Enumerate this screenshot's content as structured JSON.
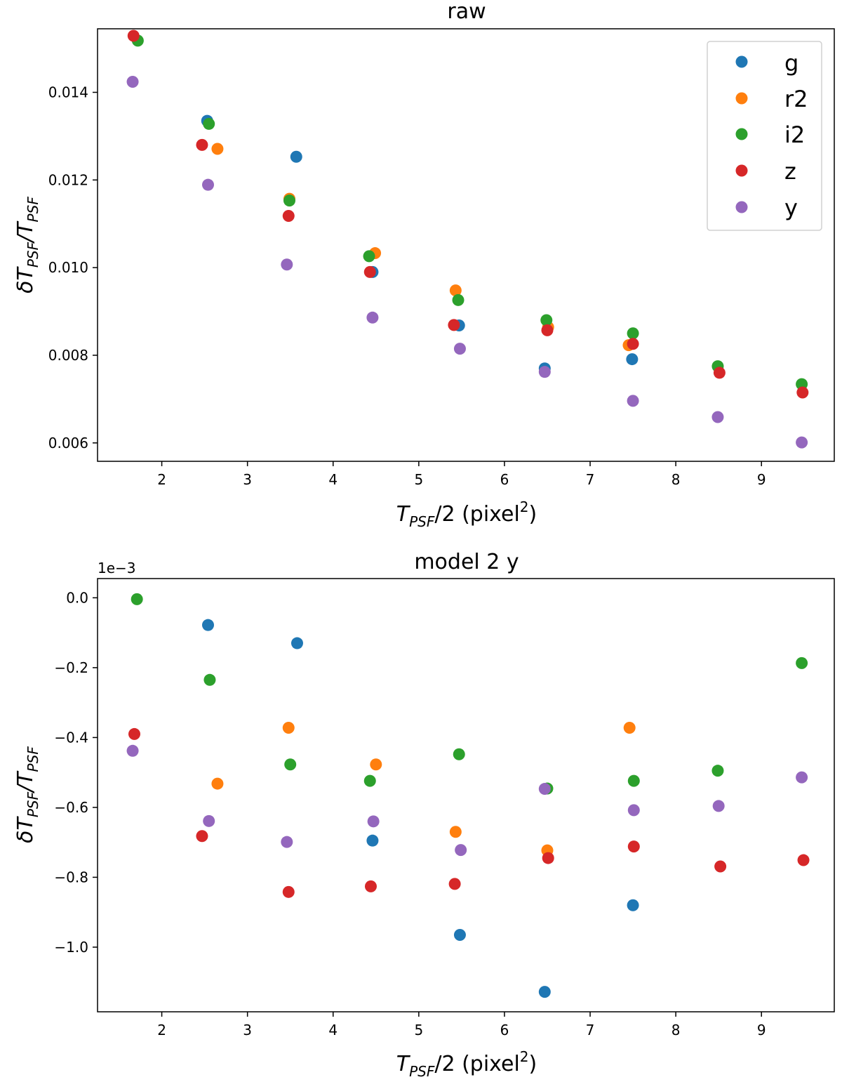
{
  "colors": {
    "g": "#1f77b4",
    "r2": "#ff7f0e",
    "i2": "#2ca02c",
    "z": "#d62728",
    "y": "#9467bd"
  },
  "chart_data": [
    {
      "type": "scatter",
      "title": "raw",
      "xlabel": {
        "t": "T",
        "sub1": "PSF",
        "mid": "/2 (pixel",
        "sup": "2",
        "end": ")"
      },
      "ylabel": {
        "d": "δT",
        "sub1": "PSF",
        "mid": "/T",
        "sub2": "PSF"
      },
      "xlim": [
        1.25,
        9.85
      ],
      "ylim": [
        0.00558,
        0.01545
      ],
      "xticks": [
        2,
        3,
        4,
        5,
        6,
        7,
        8,
        9
      ],
      "yticks": [
        0.006,
        0.008,
        0.01,
        0.012,
        0.014
      ],
      "ytick_labels": [
        "0.006",
        "0.008",
        "0.010",
        "0.012",
        "0.014"
      ],
      "legend": {
        "position": "top-right"
      },
      "series": [
        {
          "name": "g",
          "x": [
            2.53,
            3.57,
            4.46,
            5.47,
            6.47,
            7.49
          ],
          "y": [
            0.01335,
            0.01253,
            0.0099,
            0.00868,
            0.0077,
            0.00791
          ]
        },
        {
          "name": "r2",
          "x": [
            2.65,
            3.49,
            4.49,
            5.43,
            6.51,
            7.45
          ],
          "y": [
            0.01271,
            0.01157,
            0.01033,
            0.00948,
            0.00864,
            0.00823
          ]
        },
        {
          "name": "i2",
          "x": [
            1.72,
            2.55,
            3.49,
            4.42,
            5.46,
            6.49,
            7.5,
            8.49,
            9.47
          ],
          "y": [
            0.01518,
            0.01328,
            0.01153,
            0.01026,
            0.00926,
            0.0088,
            0.0085,
            0.00775,
            0.00734
          ]
        },
        {
          "name": "z",
          "x": [
            1.67,
            2.47,
            3.48,
            4.43,
            5.41,
            6.5,
            7.5,
            8.51,
            9.48
          ],
          "y": [
            0.01529,
            0.0128,
            0.01118,
            0.0099,
            0.00869,
            0.00857,
            0.00826,
            0.0076,
            0.00715
          ]
        },
        {
          "name": "y",
          "x": [
            1.66,
            2.54,
            3.46,
            4.46,
            5.48,
            6.47,
            7.5,
            8.49,
            9.47
          ],
          "y": [
            0.01424,
            0.01189,
            0.01007,
            0.00886,
            0.00815,
            0.00762,
            0.00696,
            0.00659,
            0.00601
          ]
        }
      ]
    },
    {
      "type": "scatter",
      "title": "model 2 y",
      "offset_text": "1e−3",
      "xlabel": {
        "t": "T",
        "sub1": "PSF",
        "mid": "/2 (pixel",
        "sup": "2",
        "end": ")"
      },
      "ylabel": {
        "d": "δT",
        "sub1": "PSF",
        "mid": "/T",
        "sub2": "PSF"
      },
      "xlim": [
        1.25,
        9.85
      ],
      "ylim": [
        -1.185,
        0.055
      ],
      "xticks": [
        2,
        3,
        4,
        5,
        6,
        7,
        8,
        9
      ],
      "yticks": [
        0.0,
        -0.2,
        -0.4,
        -0.6,
        -0.8,
        -1.0
      ],
      "ytick_labels": [
        "0.0",
        "−0.2",
        "−0.4",
        "−0.6",
        "−0.8",
        "−1.0"
      ],
      "series": [
        {
          "name": "g",
          "x": [
            2.54,
            3.58,
            4.46,
            5.48,
            6.47,
            7.5
          ],
          "y": [
            -0.078,
            -0.13,
            -0.695,
            -0.965,
            -1.128,
            -0.88
          ]
        },
        {
          "name": "r2",
          "x": [
            2.65,
            3.48,
            4.5,
            5.43,
            6.5,
            7.46
          ],
          "y": [
            -0.532,
            -0.372,
            -0.477,
            -0.67,
            -0.723,
            -0.372
          ]
        },
        {
          "name": "i2",
          "x": [
            1.71,
            2.56,
            3.5,
            4.43,
            5.47,
            6.5,
            7.51,
            8.49,
            9.47
          ],
          "y": [
            -0.004,
            -0.235,
            -0.477,
            -0.524,
            -0.448,
            -0.546,
            -0.524,
            -0.495,
            -0.187
          ]
        },
        {
          "name": "z",
          "x": [
            1.68,
            2.47,
            3.48,
            4.44,
            5.42,
            6.51,
            7.51,
            8.52,
            9.49
          ],
          "y": [
            -0.39,
            -0.682,
            -0.842,
            -0.826,
            -0.819,
            -0.745,
            -0.712,
            -0.769,
            -0.751
          ]
        },
        {
          "name": "y",
          "x": [
            1.66,
            2.55,
            3.46,
            4.47,
            5.49,
            6.47,
            7.51,
            8.5,
            9.47
          ],
          "y": [
            -0.438,
            -0.639,
            -0.699,
            -0.64,
            -0.722,
            -0.547,
            -0.608,
            -0.596,
            -0.514
          ]
        }
      ]
    }
  ]
}
